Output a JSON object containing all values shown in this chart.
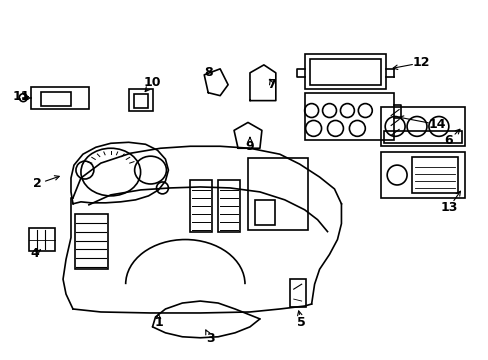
{
  "bg_color": "#ffffff",
  "line_color": "#000000",
  "line_width": 1.2,
  "fig_width": 4.89,
  "fig_height": 3.6,
  "dpi": 100,
  "font_size": 9
}
